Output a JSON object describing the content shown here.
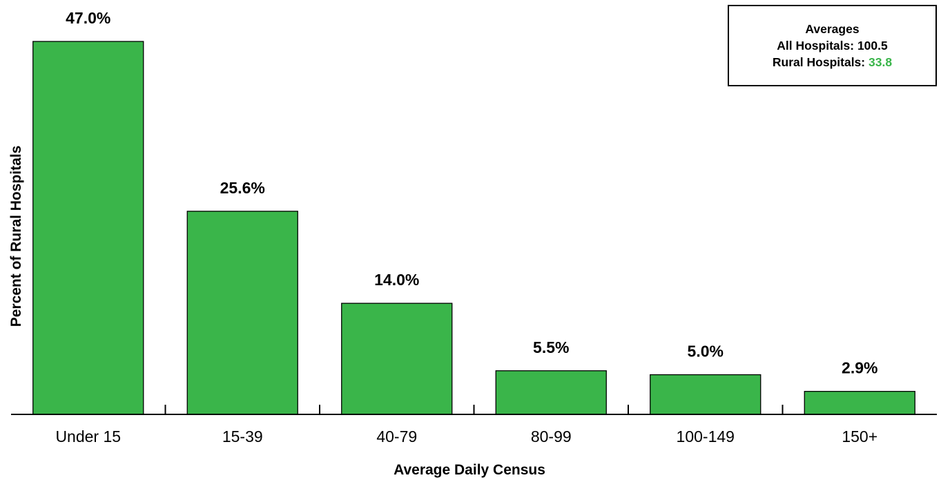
{
  "chart_data": {
    "type": "bar",
    "categories": [
      "Under 15",
      "15-39",
      "40-79",
      "80-99",
      "100-149",
      "150+"
    ],
    "values": [
      47.0,
      25.6,
      14.0,
      5.5,
      5.0,
      2.9
    ],
    "value_labels": [
      "47.0%",
      "25.6%",
      "14.0%",
      "5.5%",
      "5.0%",
      "2.9%"
    ],
    "title": "",
    "xlabel": "Average Daily Census",
    "ylabel": "Percent of Rural Hospitals",
    "ylim": [
      0,
      47
    ],
    "grid": false,
    "legend": "none"
  },
  "averages": {
    "heading": "Averages",
    "all_label": "All Hospitals:",
    "all_value": "100.5",
    "rural_label": "Rural Hospitals:",
    "rural_value": "33.8"
  },
  "colors": {
    "bar_fill": "#3ab54a",
    "accent": "#3ab54a",
    "axis": "#000000"
  }
}
